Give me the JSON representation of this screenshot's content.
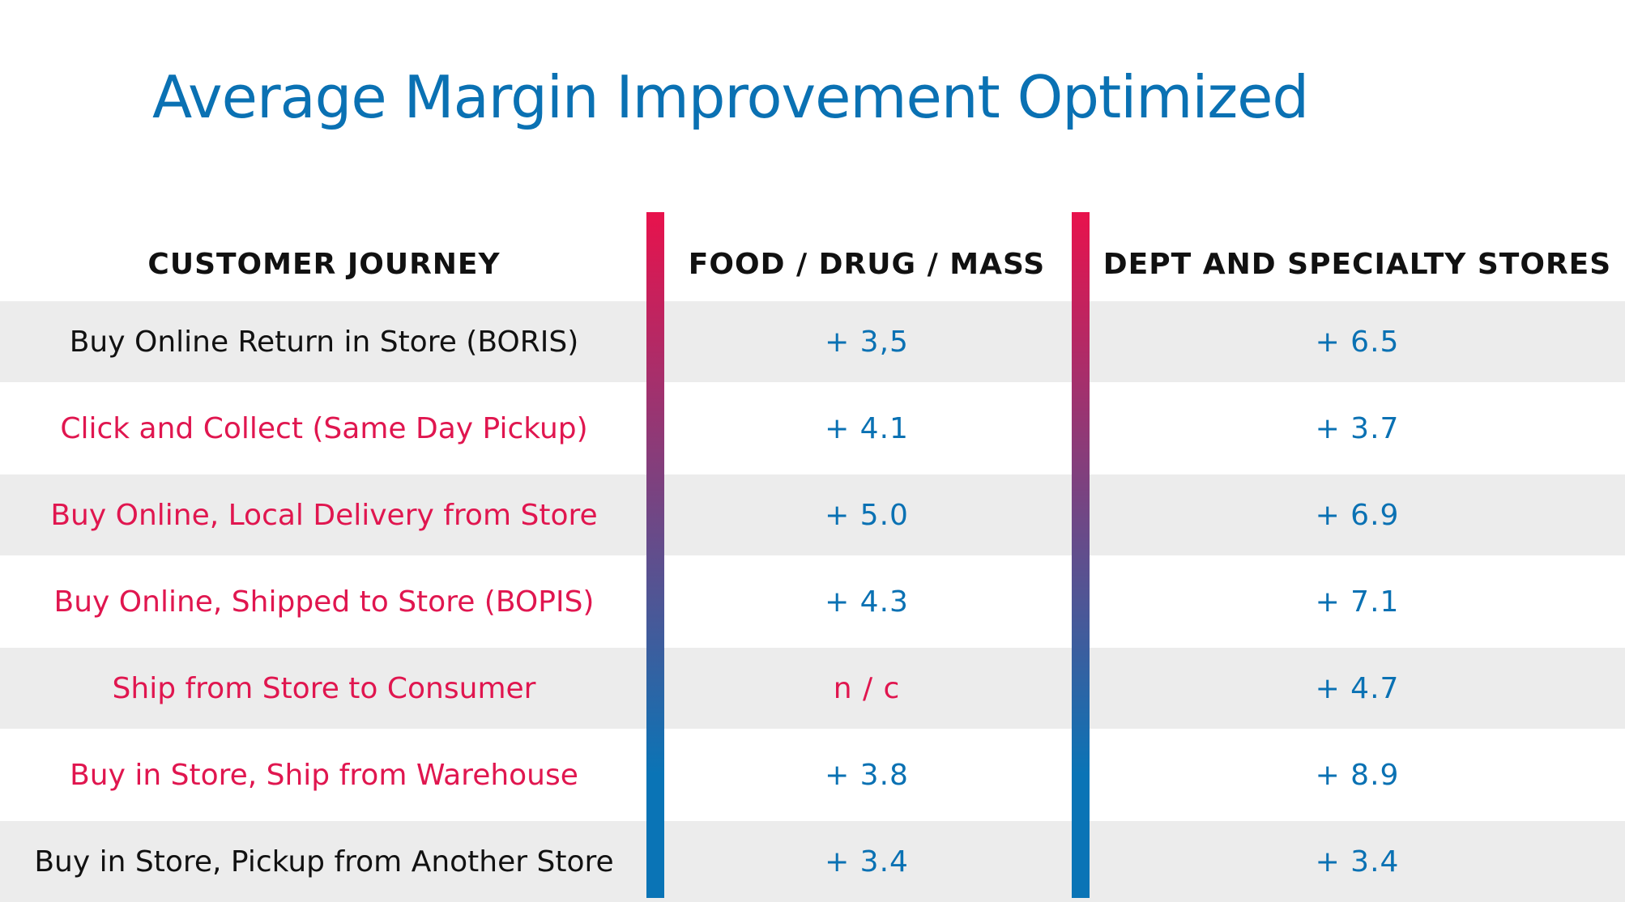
{
  "title": "Average Margin Improvement Optimized",
  "colors": {
    "title": "#0a71b3",
    "header_text": "#111111",
    "dark_text": "#111111",
    "accent_red": "#e0164f",
    "value_blue": "#0a71b3",
    "row_shade": "#ececec",
    "divider_top": "#e8124c",
    "divider_bottom": "#0a74b6"
  },
  "table": {
    "headers": {
      "journey": "CUSTOMER JOURNEY",
      "food": "FOOD / DRUG / MASS",
      "dept": "DEPT AND SPECIALTY STORES"
    },
    "rows": [
      {
        "journey": "Buy Online Return in Store (BORIS)",
        "food": "+ 3,5",
        "dept": "+ 6.5",
        "journey_color": "dark",
        "shaded": true
      },
      {
        "journey": "Click and Collect (Same Day Pickup)",
        "food": "+ 4.1",
        "dept": "+ 3.7",
        "journey_color": "red",
        "shaded": false
      },
      {
        "journey": "Buy Online, Local Delivery from Store",
        "food": "+ 5.0",
        "dept": "+ 6.9",
        "journey_color": "red",
        "shaded": true
      },
      {
        "journey": "Buy Online, Shipped to Store (BOPIS)",
        "food": "+ 4.3",
        "dept": "+ 7.1",
        "journey_color": "red",
        "shaded": false
      },
      {
        "journey": "Ship from Store to Consumer",
        "food": "n / c",
        "dept": "+ 4.7",
        "journey_color": "red",
        "shaded": true,
        "food_color": "red"
      },
      {
        "journey": "Buy in Store, Ship from Warehouse",
        "food": "+ 3.8",
        "dept": "+ 8.9",
        "journey_color": "red",
        "shaded": false
      },
      {
        "journey": "Buy in Store, Pickup from Another Store",
        "food": "+ 3.4",
        "dept": "+ 3.4",
        "journey_color": "dark",
        "shaded": true
      }
    ]
  }
}
